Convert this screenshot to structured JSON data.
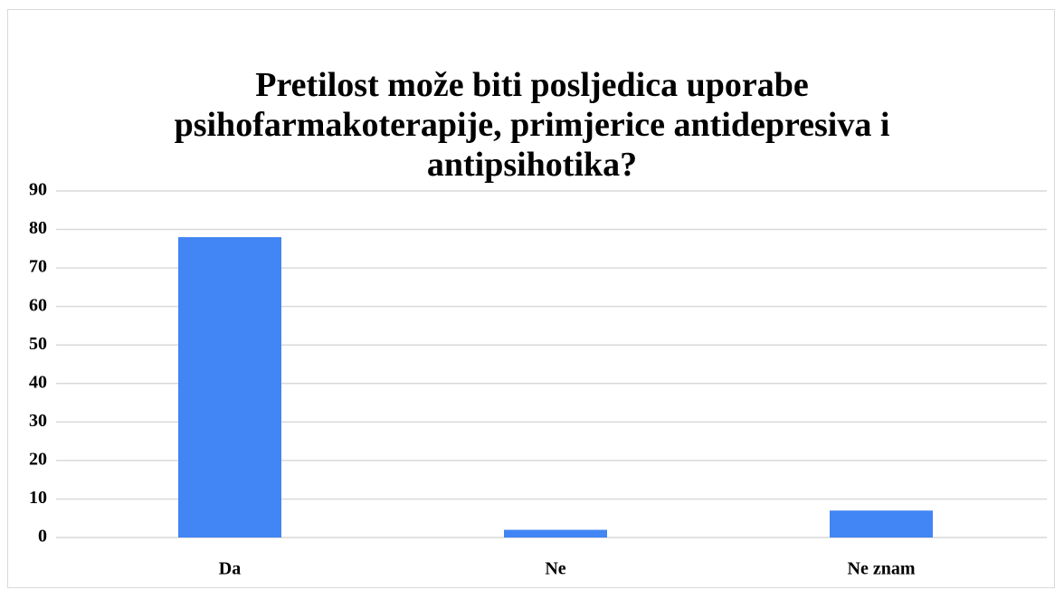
{
  "chart_data": {
    "type": "bar",
    "title": "Pretilost može biti posljedica uporabe psihofarmakoterapije, primjerice antidepresiva i antipsihotika?",
    "categories": [
      "Da",
      "Ne",
      "Ne znam"
    ],
    "values": [
      78,
      2,
      7
    ],
    "color": "#4285f4",
    "ylim": [
      0,
      90
    ],
    "yticks": [
      0,
      10,
      20,
      30,
      40,
      50,
      60,
      70,
      80,
      90
    ],
    "grid": true
  }
}
